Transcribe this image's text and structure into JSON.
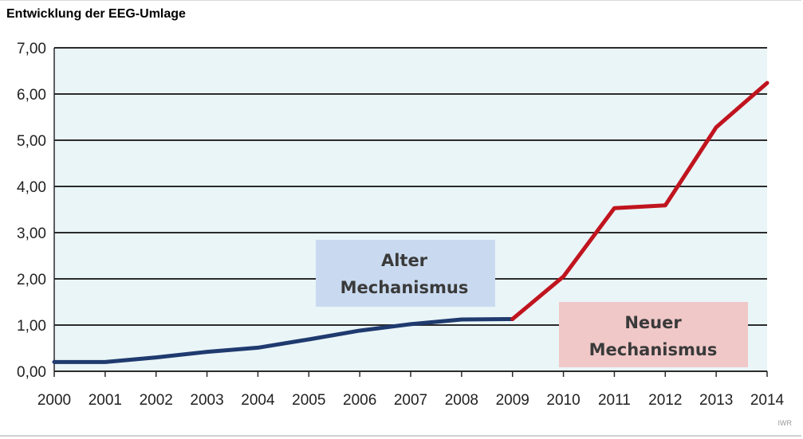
{
  "title": "Entwicklung der EEG-Umlage",
  "source": "IWR",
  "annotations": {
    "alter": [
      "Alter",
      "Mechanismus"
    ],
    "neuer": [
      "Neuer",
      "Mechanismus"
    ]
  },
  "colors": {
    "plot_bg": "#eaf5f8",
    "grid": "#2b2b2b",
    "alter_line": "#1f3a6e",
    "neuer_line": "#c0141e",
    "alter_box": "#c9daf0",
    "neuer_box": "#f0c8c8"
  },
  "chart_data": {
    "type": "line",
    "title": "Entwicklung der EEG-Umlage",
    "xlabel": "",
    "ylabel": "",
    "categories": [
      "2000",
      "2001",
      "2002",
      "2003",
      "2004",
      "2005",
      "2006",
      "2007",
      "2008",
      "2009",
      "2010",
      "2011",
      "2012",
      "2013",
      "2014"
    ],
    "y_ticks": [
      "0,00",
      "1,00",
      "2,00",
      "3,00",
      "4,00",
      "5,00",
      "6,00",
      "7,00"
    ],
    "ylim": [
      0,
      7
    ],
    "grid": true,
    "series": [
      {
        "values": [
          0.2,
          0.2,
          0.3,
          0.42,
          0.51,
          0.69,
          0.88,
          1.02,
          1.12,
          1.13,
          null,
          null,
          null,
          null,
          null
        ]
      },
      {
        "values": [
          null,
          null,
          null,
          null,
          null,
          null,
          null,
          null,
          null,
          1.13,
          2.05,
          3.53,
          3.59,
          5.28,
          6.24
        ]
      }
    ]
  }
}
